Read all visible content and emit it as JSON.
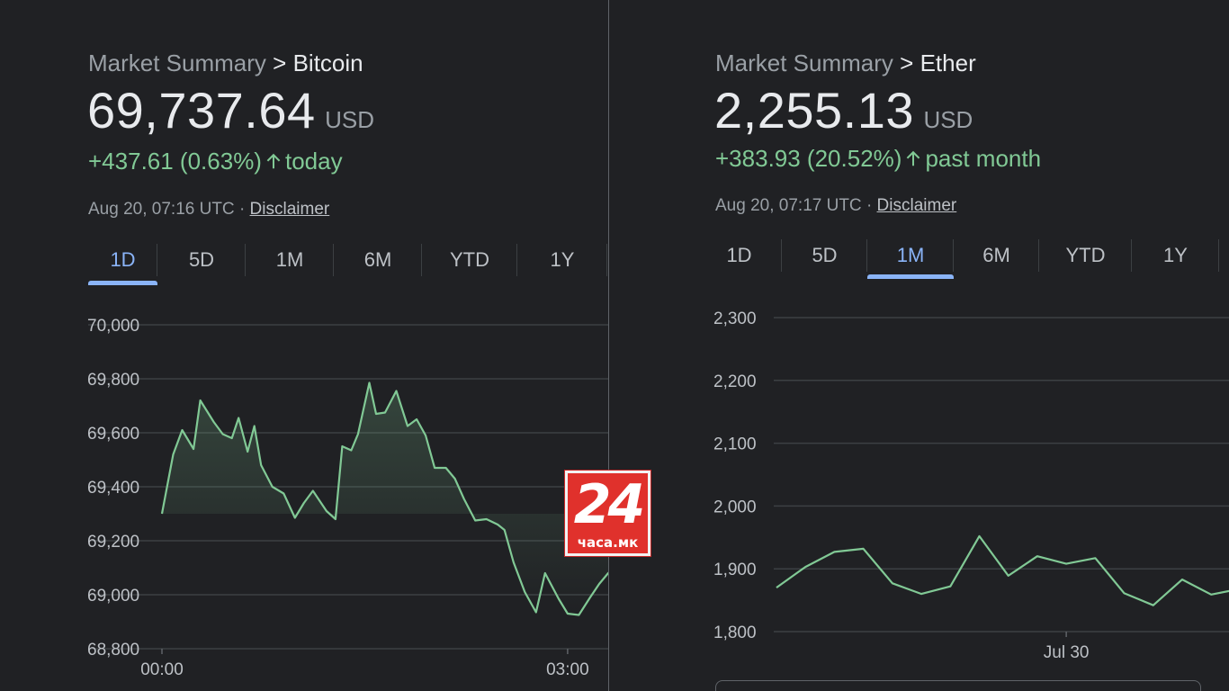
{
  "bitcoin": {
    "breadcrumb": {
      "root": "Market Summary",
      "separator": ">",
      "current": "Bitcoin"
    },
    "price": "69,737.64",
    "currency": "USD",
    "change": {
      "text": "+437.61 (0.63%)",
      "period": "today",
      "direction": "up"
    },
    "timestamp": "Aug 20, 07:16 UTC",
    "separator_dot": "·",
    "disclaimer": "Disclaimer",
    "tabs": [
      "1D",
      "5D",
      "1M",
      "6M",
      "YTD",
      "1Y"
    ],
    "active_tab": "1D"
  },
  "ether": {
    "breadcrumb": {
      "root": "Market Summary",
      "separator": ">",
      "current": "Ether"
    },
    "price": "2,255.13",
    "currency": "USD",
    "change": {
      "text": "+383.93 (20.52%)",
      "period": "past month",
      "direction": "up"
    },
    "timestamp": "Aug 20, 07:17 UTC",
    "separator_dot": "·",
    "disclaimer": "Disclaimer",
    "tabs": [
      "1D",
      "5D",
      "1M",
      "6M",
      "YTD",
      "1Y"
    ],
    "active_tab": "1M"
  },
  "watermark": {
    "number": "24",
    "text": "часа.мк"
  },
  "colors": {
    "positive": "#81c995",
    "line": "#81c995",
    "accent": "#8ab4f8",
    "background": "#202124",
    "grid": "#3c4043",
    "logo": "#e0312c"
  },
  "chart_data": [
    {
      "type": "area",
      "name": "bitcoin-1d",
      "y_ticks": [
        70000,
        69800,
        69600,
        69400,
        69200,
        69000,
        68800
      ],
      "y_tick_labels": [
        "70,000",
        "69,800",
        "69,600",
        "69,400",
        "69,200",
        "69,000",
        "68,800"
      ],
      "ylim": [
        68800,
        70000
      ],
      "x_ticks": [
        0,
        180
      ],
      "x_tick_labels": [
        "00:00",
        "03:00"
      ],
      "x_unit": "minutes since 00:00",
      "xlim": [
        0,
        204
      ],
      "grid": true,
      "series": [
        {
          "x": [
            0,
            5,
            9,
            14,
            17,
            23,
            27,
            31,
            34,
            38,
            41,
            44,
            49,
            54,
            59,
            63,
            67,
            73,
            77,
            80,
            84,
            87,
            92,
            95,
            99,
            104,
            109,
            113,
            117,
            121,
            126,
            130,
            134,
            139,
            144,
            149,
            152,
            156,
            161,
            166,
            170,
            176,
            180,
            185,
            190,
            194,
            198,
            203
          ],
          "y": [
            69300,
            69520,
            69610,
            69540,
            69720,
            69640,
            69595,
            69580,
            69655,
            69530,
            69625,
            69480,
            69400,
            69375,
            69285,
            69340,
            69385,
            69310,
            69280,
            69550,
            69535,
            69595,
            69785,
            69670,
            69675,
            69755,
            69625,
            69650,
            69590,
            69470,
            69470,
            69430,
            69355,
            69275,
            69280,
            69260,
            69240,
            69120,
            69010,
            68935,
            69080,
            68985,
            68930,
            68925,
            68990,
            69040,
            69080,
            69120
          ]
        }
      ]
    },
    {
      "type": "line",
      "name": "ether-1m",
      "y_ticks": [
        2300,
        2200,
        2100,
        2000,
        1900,
        1800
      ],
      "y_tick_labels": [
        "2,300",
        "2,200",
        "2,100",
        "2,000",
        "1,900",
        "1,800"
      ],
      "ylim": [
        1800,
        2300
      ],
      "x_ticks": [
        9
      ],
      "x_tick_labels": [
        "Jul 30"
      ],
      "x_unit": "days since Jul 21",
      "xlim": [
        0,
        14.5
      ],
      "grid": true,
      "series": [
        {
          "x": [
            0,
            0.9,
            1.8,
            2.7,
            3.6,
            4.5,
            5.4,
            6.3,
            7.2,
            8.1,
            9.0,
            9.9,
            10.8,
            11.7,
            12.6,
            13.5,
            14.4
          ],
          "y": [
            1870,
            1903,
            1927,
            1932,
            1877,
            1860,
            1872,
            1952,
            1889,
            1920,
            1908,
            1917,
            1861,
            1842,
            1883,
            1859,
            1868
          ]
        }
      ]
    }
  ]
}
